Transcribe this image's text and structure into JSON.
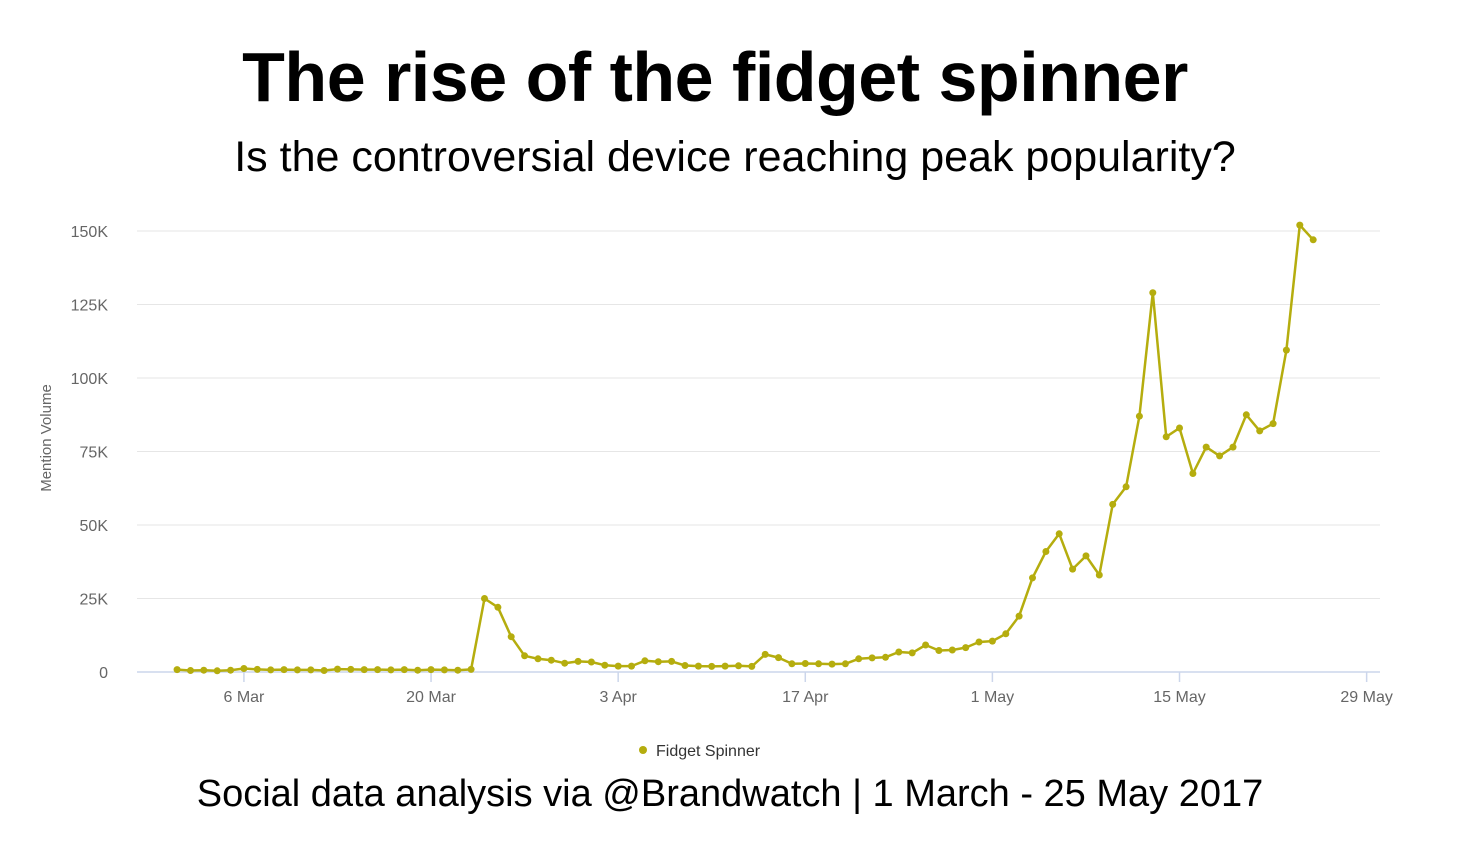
{
  "title": "The rise of the fidget spinner",
  "subtitle": "Is the controversial device reaching peak popularity?",
  "footer": "Social data analysis via @Brandwatch | 1 March - 25 May 2017",
  "colors": {
    "series": "#b5ad0e",
    "grid": "#e6e6e6",
    "axis": "#ccd6eb",
    "label": "#666666"
  },
  "chart_data": {
    "type": "line",
    "ylabel": "Mention Volume",
    "xlabel": "",
    "ylim": [
      0,
      150000
    ],
    "yticks": [
      0,
      25000,
      50000,
      75000,
      100000,
      125000,
      150000
    ],
    "ytick_labels": [
      "0",
      "25K",
      "50K",
      "75K",
      "100K",
      "125K",
      "150K"
    ],
    "xlim": [
      "2017-02-26",
      "2017-05-30"
    ],
    "xticks": [
      "2017-03-06",
      "2017-03-20",
      "2017-04-03",
      "2017-04-17",
      "2017-05-01",
      "2017-05-15",
      "2017-05-29"
    ],
    "xtick_labels": [
      "6 Mar",
      "20 Mar",
      "3 Apr",
      "17 Apr",
      "1 May",
      "15 May",
      "29 May"
    ],
    "grid": true,
    "legend_position": "bottom-center",
    "start_date": "2017-03-01",
    "series": [
      {
        "name": "Fidget Spinner",
        "values": [
          800,
          500,
          600,
          400,
          600,
          1200,
          900,
          700,
          800,
          700,
          700,
          500,
          1000,
          900,
          800,
          800,
          700,
          800,
          600,
          800,
          700,
          600,
          900,
          25000,
          22000,
          12000,
          5500,
          4500,
          4000,
          3000,
          3600,
          3400,
          2300,
          2000,
          2000,
          3800,
          3500,
          3600,
          2200,
          2000,
          1900,
          2000,
          2100,
          1900,
          6000,
          4900,
          2800,
          2900,
          2800,
          2700,
          2800,
          4500,
          4800,
          5000,
          6800,
          6500,
          9200,
          7300,
          7500,
          8300,
          10200,
          10500,
          13000,
          19000,
          32000,
          41000,
          47000,
          35000,
          39500,
          33000,
          57000,
          63000,
          87000,
          129000,
          80000,
          83000,
          67500,
          76500,
          73500,
          76500,
          87500,
          82000,
          84500,
          109500,
          152000,
          147000
        ]
      }
    ]
  }
}
